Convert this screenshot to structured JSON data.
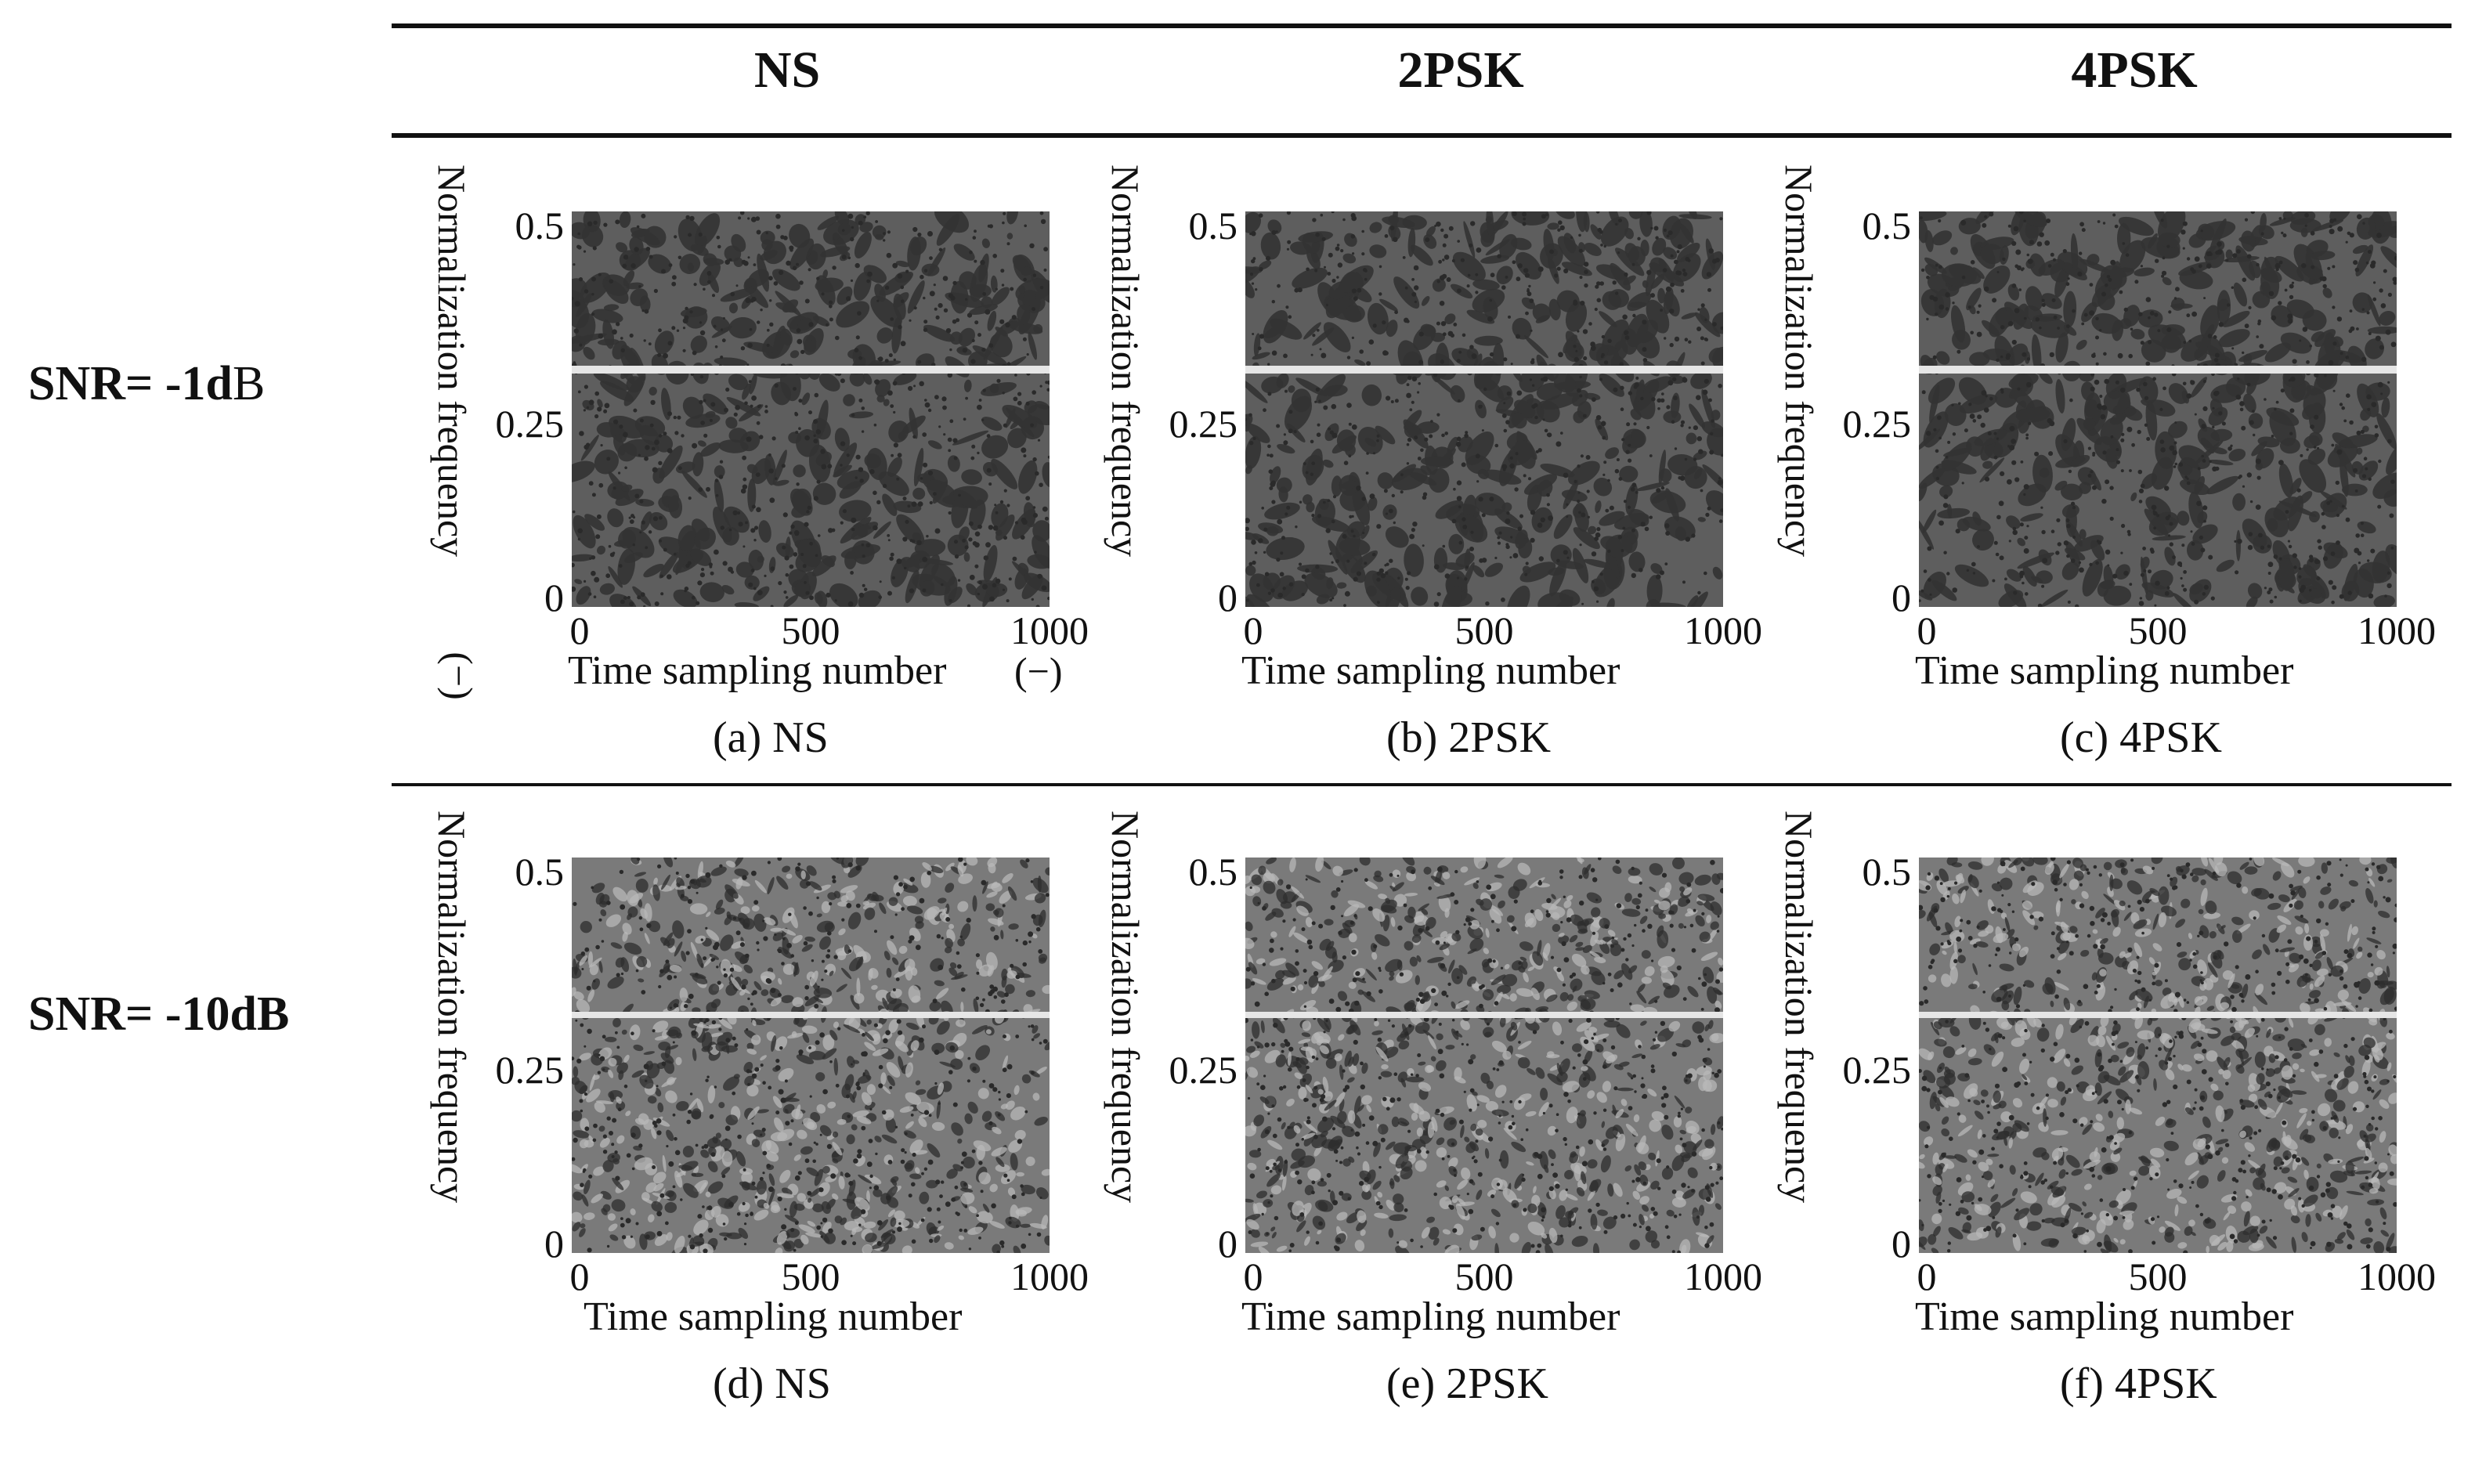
{
  "column_headers": [
    "NS",
    "2PSK",
    "4PSK"
  ],
  "row_headers": [
    {
      "bold": "SNR= -1d",
      "plain": "B"
    },
    {
      "bold": "SNR= -10dB",
      "plain": ""
    }
  ],
  "axis": {
    "ylabel": "Normalization frequency",
    "xlabel": "Time sampling number",
    "yticks": [
      "0.5",
      "0.25",
      "0"
    ],
    "xticks": [
      "0",
      "500",
      "1000"
    ],
    "unit": "(−)"
  },
  "panels": [
    {
      "caption": "(a) NS",
      "snr_db": -1,
      "signal": "NS"
    },
    {
      "caption": "(b) 2PSK",
      "snr_db": -1,
      "signal": "2PSK"
    },
    {
      "caption": "(c) 4PSK",
      "snr_db": -1,
      "signal": "4PSK"
    },
    {
      "caption": "(d) NS",
      "snr_db": -10,
      "signal": "NS"
    },
    {
      "caption": "(e) 2PSK",
      "snr_db": -10,
      "signal": "2PSK"
    },
    {
      "caption": "(f) 4PSK",
      "snr_db": -10,
      "signal": "4PSK"
    }
  ],
  "chart_data": {
    "type": "heatmap",
    "xlim": [
      0,
      1000
    ],
    "ylim": [
      0,
      0.5
    ],
    "bright_line_frequency": 0.3,
    "colors": {
      "background_high_snr": "#5e5e5e",
      "background_low_snr": "#7a7a7a",
      "line": "#e6e6e6"
    }
  }
}
